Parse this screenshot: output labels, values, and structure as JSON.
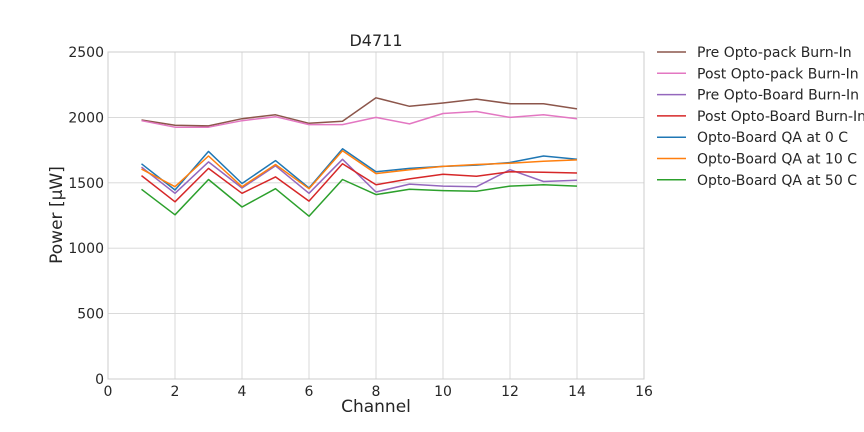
{
  "chart_data": {
    "type": "line",
    "title": "D4711",
    "xlabel": "Channel",
    "ylabel": "Power [μW]",
    "xlim": [
      0,
      16
    ],
    "ylim": [
      0,
      2500
    ],
    "xticks": [
      0,
      2,
      4,
      6,
      8,
      10,
      12,
      14,
      16
    ],
    "yticks": [
      0,
      500,
      1000,
      1500,
      2000,
      2500
    ],
    "grid": true,
    "legend_position": "outside-right-top",
    "x": [
      1,
      2,
      3,
      4,
      5,
      6,
      7,
      8,
      9,
      10,
      11,
      12,
      13,
      14
    ],
    "series": [
      {
        "name": "Pre Opto-pack Burn-In",
        "color": "#8c564b",
        "values": [
          1980,
          1940,
          1935,
          1990,
          2020,
          1955,
          1970,
          2150,
          2085,
          2110,
          2140,
          2105,
          2105,
          2065
        ]
      },
      {
        "name": "Post Opto-pack Burn-In",
        "color": "#e377c2",
        "values": [
          1975,
          1925,
          1925,
          1975,
          2005,
          1945,
          1945,
          2000,
          1950,
          2030,
          2045,
          2000,
          2020,
          1990
        ]
      },
      {
        "name": "Pre Opto-Board Burn-In",
        "color": "#9467bd",
        "values": [
          1620,
          1420,
          1660,
          1460,
          1630,
          1420,
          1680,
          1430,
          1490,
          1475,
          1470,
          1600,
          1510,
          1520
        ]
      },
      {
        "name": "Post Opto-Board Burn-In",
        "color": "#d62728",
        "values": [
          1555,
          1355,
          1610,
          1420,
          1545,
          1360,
          1645,
          1485,
          1530,
          1565,
          1550,
          1585,
          1580,
          1575
        ]
      },
      {
        "name": "Opto-Board QA at 0 C",
        "color": "#1f77b4",
        "values": [
          1645,
          1445,
          1740,
          1495,
          1670,
          1460,
          1760,
          1585,
          1610,
          1625,
          1635,
          1655,
          1705,
          1680
        ]
      },
      {
        "name": "Opto-Board QA at 10 C",
        "color": "#ff7f0e",
        "values": [
          1605,
          1470,
          1705,
          1470,
          1640,
          1455,
          1745,
          1570,
          1600,
          1625,
          1640,
          1650,
          1665,
          1675
        ]
      },
      {
        "name": "Opto-Board QA at 50 C",
        "color": "#2ca02c",
        "values": [
          1450,
          1255,
          1525,
          1315,
          1455,
          1245,
          1525,
          1410,
          1450,
          1440,
          1435,
          1475,
          1485,
          1475
        ]
      }
    ]
  }
}
